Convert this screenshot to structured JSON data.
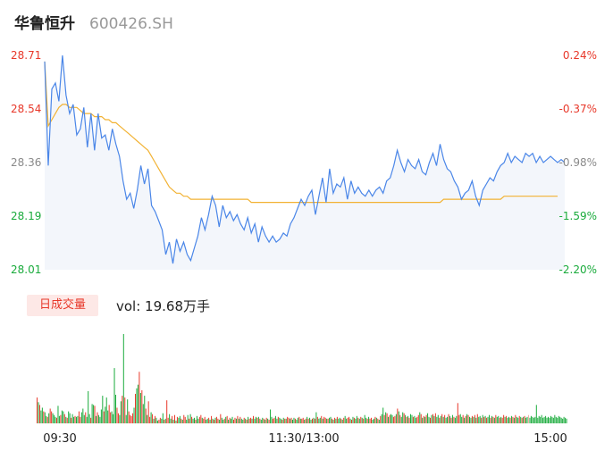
{
  "header": {
    "stock_name": "华鲁恒升",
    "stock_code": "600426.SH"
  },
  "volume_panel": {
    "label": "日成交量",
    "summary": "vol: 19.68万手"
  },
  "colors": {
    "price_line": "#4a86e8",
    "avg_line": "#f2b233",
    "up": "#e8382a",
    "down": "#1aab3c",
    "neutral": "#8a8a8a",
    "area_fill": "#f3f6fb"
  },
  "chart_data": [
    {
      "type": "line",
      "title": "",
      "x_ticks": [
        "09:30",
        "11:30/13:00",
        "15:00"
      ],
      "y_left_ticks": [
        "28.71",
        "28.54",
        "28.36",
        "28.19",
        "28.01"
      ],
      "y_right_ticks": [
        "0.24%",
        "-0.37%",
        "-0.98%",
        "-1.59%",
        "-2.20%"
      ],
      "ylim": [
        28.01,
        28.71
      ],
      "series": [
        {
          "key": "price",
          "values": [
            28.69,
            28.35,
            28.6,
            28.62,
            28.56,
            28.71,
            28.58,
            28.52,
            28.55,
            28.45,
            28.47,
            28.54,
            28.41,
            28.52,
            28.4,
            28.52,
            28.44,
            28.45,
            28.4,
            28.47,
            28.42,
            28.38,
            28.3,
            28.24,
            28.26,
            28.21,
            28.27,
            28.35,
            28.29,
            28.34,
            28.22,
            28.2,
            28.17,
            28.14,
            28.06,
            28.1,
            28.03,
            28.11,
            28.07,
            28.1,
            28.06,
            28.04,
            28.08,
            28.12,
            28.18,
            28.14,
            28.19,
            28.25,
            28.22,
            28.15,
            28.22,
            28.18,
            28.2,
            28.17,
            28.19,
            28.16,
            28.14,
            28.18,
            28.13,
            28.16,
            28.1,
            28.15,
            28.12,
            28.1,
            28.12,
            28.1,
            28.11,
            28.13,
            28.12,
            28.16,
            28.18,
            28.21,
            28.24,
            28.22,
            28.25,
            28.27,
            28.19,
            28.25,
            28.31,
            28.23,
            28.34,
            28.26,
            28.29,
            28.28,
            28.31,
            28.24,
            28.3,
            28.26,
            28.28,
            28.26,
            28.25,
            28.27,
            28.25,
            28.27,
            28.28,
            28.26,
            28.3,
            28.31,
            28.35,
            28.4,
            28.36,
            28.33,
            28.37,
            28.35,
            28.34,
            28.37,
            28.33,
            28.32,
            28.36,
            28.39,
            28.35,
            28.42,
            28.37,
            28.34,
            28.33,
            28.3,
            28.28,
            28.24,
            28.26,
            28.27,
            28.3,
            28.25,
            28.22,
            28.27,
            28.29,
            28.31,
            28.3,
            28.33,
            28.35,
            28.36,
            28.39,
            28.36,
            28.38,
            28.37,
            28.36,
            28.39,
            28.38,
            28.39,
            28.36,
            28.38,
            28.36,
            28.37,
            28.38,
            28.37,
            28.36,
            28.37,
            28.36
          ]
        },
        {
          "key": "average",
          "values": [
            28.69,
            28.48,
            28.5,
            28.52,
            28.54,
            28.55,
            28.55,
            28.54,
            28.54,
            28.54,
            28.53,
            28.52,
            28.52,
            28.52,
            28.51,
            28.51,
            28.51,
            28.5,
            28.5,
            28.49,
            28.49,
            28.48,
            28.47,
            28.46,
            28.45,
            28.44,
            28.43,
            28.42,
            28.41,
            28.4,
            28.38,
            28.36,
            28.34,
            28.32,
            28.3,
            28.28,
            28.27,
            28.26,
            28.26,
            28.25,
            28.25,
            28.24,
            28.24,
            28.24,
            28.24,
            28.24,
            28.24,
            28.24,
            28.24,
            28.24,
            28.24,
            28.24,
            28.24,
            28.24,
            28.24,
            28.24,
            28.24,
            28.24,
            28.23,
            28.23,
            28.23,
            28.23,
            28.23,
            28.23,
            28.23,
            28.23,
            28.23,
            28.23,
            28.23,
            28.23,
            28.23,
            28.23,
            28.23,
            28.23,
            28.23,
            28.23,
            28.23,
            28.23,
            28.23,
            28.23,
            28.23,
            28.23,
            28.23,
            28.23,
            28.23,
            28.23,
            28.23,
            28.23,
            28.23,
            28.23,
            28.23,
            28.23,
            28.23,
            28.23,
            28.23,
            28.23,
            28.23,
            28.23,
            28.23,
            28.23,
            28.23,
            28.23,
            28.23,
            28.23,
            28.23,
            28.23,
            28.23,
            28.23,
            28.23,
            28.23,
            28.23,
            28.23,
            28.24,
            28.24,
            28.24,
            28.24,
            28.24,
            28.24,
            28.24,
            28.24,
            28.24,
            28.24,
            28.24,
            28.24,
            28.24,
            28.24,
            28.24,
            28.24,
            28.24,
            28.25,
            28.25,
            28.25,
            28.25,
            28.25,
            28.25,
            28.25,
            28.25,
            28.25,
            28.25,
            28.25,
            28.25,
            28.25,
            28.25,
            28.25,
            28.25
          ]
        }
      ]
    },
    {
      "type": "bar",
      "title": "",
      "values": [
        0.28,
        0.23,
        0.2,
        0.14,
        0.17,
        0.13,
        0.12,
        0.08,
        0.07,
        0.11,
        0.16,
        0.13,
        0.11,
        0.09,
        0.07,
        0.06,
        0.19,
        0.08,
        0.09,
        0.14,
        0.13,
        0.1,
        0.07,
        0.06,
        0.13,
        0.11,
        0.06,
        0.1,
        0.07,
        0.08,
        0.07,
        0.08,
        0.13,
        0.07,
        0.12,
        0.16,
        0.09,
        0.12,
        0.07,
        0.35,
        0.1,
        0.06,
        0.21,
        0.2,
        0.19,
        0.08,
        0.12,
        0.09,
        0.07,
        0.15,
        0.3,
        0.13,
        0.18,
        0.28,
        0.14,
        0.2,
        0.12,
        0.13,
        0.1,
        0.6,
        0.31,
        0.17,
        0.11,
        0.09,
        0.24,
        0.3,
        0.97,
        0.28,
        0.09,
        0.26,
        0.13,
        0.09,
        0.08,
        0.11,
        0.17,
        0.32,
        0.38,
        0.42,
        0.56,
        0.33,
        0.36,
        0.21,
        0.3,
        0.16,
        0.09,
        0.24,
        0.07,
        0.12,
        0.1,
        0.05,
        0.08,
        0.06,
        0.03,
        0.04,
        0.06,
        0.05,
        0.11,
        0.04,
        0.05,
        0.25,
        0.06,
        0.1,
        0.05,
        0.08,
        0.04,
        0.09,
        0.03,
        0.07,
        0.06,
        0.08,
        0.05,
        0.04,
        0.09,
        0.07,
        0.04,
        0.09,
        0.05,
        0.1,
        0.07,
        0.05,
        0.06,
        0.04,
        0.08,
        0.05,
        0.07,
        0.09,
        0.06,
        0.05,
        0.07,
        0.04,
        0.05,
        0.06,
        0.04,
        0.08,
        0.05,
        0.04,
        0.06,
        0.07,
        0.05,
        0.04,
        0.1,
        0.06,
        0.04,
        0.05,
        0.07,
        0.08,
        0.04,
        0.06,
        0.05,
        0.07,
        0.04,
        0.06,
        0.05,
        0.08,
        0.05,
        0.07,
        0.05,
        0.04,
        0.06,
        0.05,
        0.04,
        0.07,
        0.05,
        0.06,
        0.05,
        0.08,
        0.05,
        0.07,
        0.06,
        0.07,
        0.05,
        0.04,
        0.06,
        0.05,
        0.04,
        0.06,
        0.05,
        0.04,
        0.15,
        0.07,
        0.05,
        0.06,
        0.08,
        0.05,
        0.07,
        0.06,
        0.05,
        0.04,
        0.06,
        0.05,
        0.05,
        0.07,
        0.06,
        0.05,
        0.06,
        0.04,
        0.06,
        0.05,
        0.04,
        0.06,
        0.07,
        0.05,
        0.05,
        0.06,
        0.04,
        0.05,
        0.07,
        0.05,
        0.06,
        0.04,
        0.05,
        0.06,
        0.05,
        0.12,
        0.07,
        0.05,
        0.06,
        0.08,
        0.05,
        0.07,
        0.06,
        0.05,
        0.05,
        0.06,
        0.07,
        0.05,
        0.04,
        0.06,
        0.05,
        0.07,
        0.05,
        0.06,
        0.05,
        0.04,
        0.06,
        0.08,
        0.05,
        0.06,
        0.07,
        0.05,
        0.04,
        0.07,
        0.06,
        0.05,
        0.08,
        0.06,
        0.05,
        0.07,
        0.06,
        0.05,
        0.09,
        0.06,
        0.05,
        0.07,
        0.05,
        0.06,
        0.04,
        0.05,
        0.07,
        0.06,
        0.05,
        0.04,
        0.08,
        0.1,
        0.17,
        0.09,
        0.12,
        0.11,
        0.07,
        0.09,
        0.1,
        0.09,
        0.07,
        0.08,
        0.1,
        0.16,
        0.13,
        0.09,
        0.07,
        0.12,
        0.11,
        0.09,
        0.07,
        0.08,
        0.06,
        0.1,
        0.09,
        0.07,
        0.08,
        0.06,
        0.07,
        0.09,
        0.12,
        0.1,
        0.06,
        0.08,
        0.07,
        0.09,
        0.11,
        0.07,
        0.06,
        0.09,
        0.1,
        0.08,
        0.11,
        0.07,
        0.09,
        0.06,
        0.08,
        0.1,
        0.07,
        0.09,
        0.06,
        0.07,
        0.1,
        0.08,
        0.06,
        0.09,
        0.07,
        0.06,
        0.08,
        0.22,
        0.09,
        0.1,
        0.07,
        0.09,
        0.06,
        0.08,
        0.1,
        0.09,
        0.07,
        0.06,
        0.08,
        0.07,
        0.09,
        0.06,
        0.1,
        0.07,
        0.08,
        0.06,
        0.09,
        0.07,
        0.08,
        0.06,
        0.07,
        0.09,
        0.06,
        0.08,
        0.07,
        0.06,
        0.09,
        0.07,
        0.08,
        0.06,
        0.07,
        0.06,
        0.09,
        0.07,
        0.08,
        0.06,
        0.07,
        0.06,
        0.08,
        0.07,
        0.06,
        0.09,
        0.07,
        0.06,
        0.08,
        0.07,
        0.06,
        0.07,
        0.08,
        0.06,
        0.07,
        0.09,
        0.06,
        0.08,
        0.07,
        0.06,
        0.07,
        0.2,
        0.06,
        0.08,
        0.07,
        0.09,
        0.06,
        0.07,
        0.08,
        0.06,
        0.07,
        0.06,
        0.08,
        0.07,
        0.06,
        0.09,
        0.07,
        0.06,
        0.08,
        0.07,
        0.06,
        0.05,
        0.07,
        0.06,
        0.05
      ],
      "dir": [
        1,
        0,
        1,
        0,
        0,
        1,
        0,
        0,
        1,
        0,
        1,
        1,
        0,
        0,
        0,
        1,
        0,
        0,
        1,
        0,
        0,
        1,
        0,
        1,
        0,
        0,
        1,
        0,
        0,
        1,
        0,
        0,
        1,
        1,
        0,
        0,
        0,
        1,
        0,
        0,
        0,
        1,
        0,
        0,
        1,
        0,
        1,
        0,
        0,
        0,
        0,
        1,
        0,
        0,
        0,
        1,
        1,
        0,
        0,
        0,
        0,
        1,
        1,
        0,
        0,
        1,
        0,
        1,
        0,
        0,
        1,
        1,
        1,
        1,
        0,
        1,
        0,
        0,
        1,
        0,
        1,
        0,
        0,
        1,
        0,
        1,
        1,
        0,
        1,
        0,
        1,
        0,
        0,
        1,
        1,
        0,
        0,
        1,
        0,
        1,
        1,
        0,
        0,
        1,
        0,
        1,
        0,
        1,
        0,
        0,
        1,
        0,
        1,
        1,
        0,
        0,
        1,
        0,
        1,
        0,
        0,
        1,
        0,
        0,
        1,
        1,
        0,
        1,
        1,
        0,
        0,
        1,
        0,
        1,
        0,
        1,
        0,
        1,
        1,
        0,
        1,
        0,
        0,
        1,
        0,
        1,
        0,
        1,
        0,
        0,
        1,
        1,
        0,
        1,
        0,
        1,
        0,
        0,
        1,
        0,
        1,
        0,
        1,
        1,
        0,
        1,
        0,
        0,
        1,
        0,
        1,
        0,
        0,
        1,
        0,
        1,
        0,
        1,
        0,
        0,
        1,
        1,
        0,
        0,
        1,
        0,
        0,
        1,
        0,
        1,
        0,
        1,
        1,
        0,
        1,
        0,
        0,
        1,
        0,
        0,
        1,
        0,
        1,
        1,
        0,
        1,
        0,
        1,
        0,
        0,
        1,
        0,
        1,
        0,
        1,
        0,
        0,
        1,
        0,
        1,
        1,
        0,
        1,
        0,
        0,
        1,
        0,
        1,
        0,
        1,
        0,
        0,
        1,
        0,
        1,
        0,
        0,
        1,
        1,
        0,
        1,
        0,
        1,
        0,
        0,
        1,
        0,
        1,
        0,
        1,
        0,
        0,
        1,
        0,
        1,
        1,
        0,
        0,
        1,
        0,
        1,
        0,
        1,
        0,
        0,
        1,
        0,
        1,
        0,
        1,
        0,
        0,
        1,
        1,
        0,
        1,
        0,
        1,
        0,
        0,
        1,
        0,
        1,
        0,
        1,
        0,
        0,
        1,
        0,
        0,
        1,
        1,
        0,
        1,
        0,
        1,
        0,
        1,
        0,
        0,
        1,
        0,
        1,
        0,
        1,
        0,
        0,
        1,
        0,
        1,
        0,
        1,
        0,
        0,
        1,
        0,
        1,
        0,
        1,
        0,
        0,
        1,
        1,
        0,
        0,
        1,
        0,
        1,
        0,
        1,
        0,
        0,
        1,
        0,
        1,
        0,
        1,
        0,
        0,
        1,
        0,
        1,
        0,
        1,
        0,
        0,
        1,
        0,
        1,
        0,
        1,
        0,
        0,
        1,
        0,
        1,
        1,
        0,
        1,
        0,
        0,
        1,
        0,
        1,
        0,
        1,
        0,
        0,
        1,
        0,
        1,
        0,
        1,
        0,
        0,
        2
      ]
    }
  ]
}
